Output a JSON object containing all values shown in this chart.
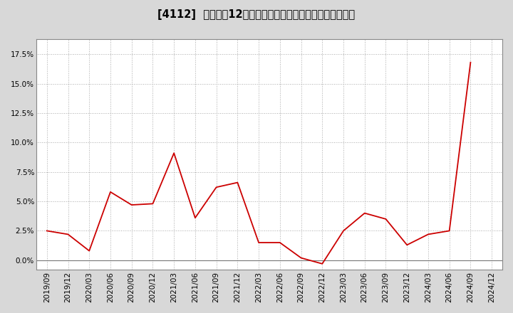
{
  "title": "[4112]  売上高の12か月移動合計の対前年同期増減率の推移",
  "x_labels": [
    "2019/09",
    "2019/12",
    "2020/03",
    "2020/06",
    "2020/09",
    "2020/12",
    "2021/03",
    "2021/06",
    "2021/09",
    "2021/12",
    "2022/03",
    "2022/06",
    "2022/09",
    "2022/12",
    "2023/03",
    "2023/06",
    "2023/09",
    "2023/12",
    "2024/03",
    "2024/06",
    "2024/09",
    "2024/12"
  ],
  "y_values": [
    0.025,
    0.022,
    0.008,
    0.058,
    0.047,
    0.048,
    0.091,
    0.036,
    0.062,
    0.066,
    0.015,
    0.015,
    0.002,
    -0.003,
    0.025,
    0.04,
    0.035,
    0.013,
    0.022,
    0.025,
    0.168,
    null
  ],
  "line_color": "#cc0000",
  "bg_color": "#d8d8d8",
  "plot_bg_color": "#ffffff",
  "grid_color": "#aaaaaa",
  "ylim": [
    -0.008,
    0.188
  ],
  "yticks": [
    0.0,
    0.025,
    0.05,
    0.075,
    0.1,
    0.125,
    0.15,
    0.175
  ],
  "ytick_labels": [
    "0.0%",
    "2.5%",
    "5.0%",
    "7.5%",
    "10.0%",
    "12.5%",
    "15.0%",
    "17.5%"
  ],
  "title_fontsize": 10.5,
  "tick_fontsize": 7.5
}
